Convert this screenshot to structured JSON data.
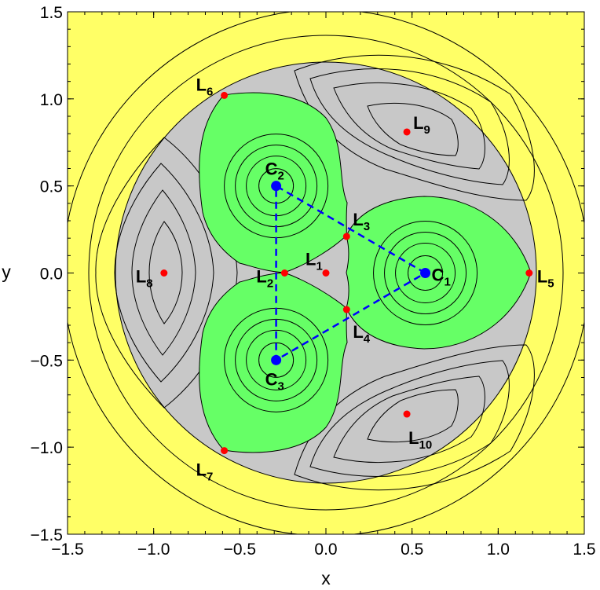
{
  "chart_data": {
    "type": "contour",
    "xlabel": "x",
    "ylabel": "y",
    "xlim": [
      -1.5,
      1.5
    ],
    "ylim": [
      -1.5,
      1.5
    ],
    "x_ticks": [
      -1.5,
      -1.0,
      -0.5,
      0.0,
      0.5,
      1.0,
      1.5
    ],
    "x_tick_labels": [
      "−1.5",
      "−1.0",
      "−0.5",
      "0.0",
      "0.5",
      "1.0",
      "1.5"
    ],
    "y_ticks": [
      1.5,
      1.0,
      0.5,
      0.0,
      -0.5,
      -1.0,
      -1.5
    ],
    "y_tick_labels": [
      "1.5",
      "1.0",
      "0.5",
      "0.0",
      "−0.5",
      "−1.0",
      "−1.5"
    ],
    "grid": false,
    "region_colors": {
      "outer": "#ffff66",
      "forbidden": "#c8c8c8",
      "allowed": "#66ff66"
    },
    "primaries": [
      {
        "name": "C",
        "sub": "1",
        "x": 0.577,
        "y": 0.0
      },
      {
        "name": "C",
        "sub": "2",
        "x": -0.289,
        "y": 0.5
      },
      {
        "name": "C",
        "sub": "3",
        "x": -0.289,
        "y": -0.5
      }
    ],
    "triangle_style": {
      "color": "#0000ff",
      "dash": "dashed"
    },
    "equilibria": [
      {
        "name": "L",
        "sub": "1",
        "x": 0.0,
        "y": 0.0
      },
      {
        "name": "L",
        "sub": "2",
        "x": -0.24,
        "y": 0.0
      },
      {
        "name": "L",
        "sub": "3",
        "x": 0.12,
        "y": 0.21
      },
      {
        "name": "L",
        "sub": "4",
        "x": 0.12,
        "y": -0.21
      },
      {
        "name": "L",
        "sub": "5",
        "x": 1.18,
        "y": 0.0
      },
      {
        "name": "L",
        "sub": "6",
        "x": -0.59,
        "y": 1.02
      },
      {
        "name": "L",
        "sub": "7",
        "x": -0.59,
        "y": -1.02
      },
      {
        "name": "L",
        "sub": "8",
        "x": -0.94,
        "y": 0.0
      },
      {
        "name": "L",
        "sub": "9",
        "x": 0.47,
        "y": 0.81
      },
      {
        "name": "L",
        "sub": "10",
        "x": 0.47,
        "y": -0.81
      }
    ],
    "point_colors": {
      "primaries": "#0000ff",
      "equilibria": "#ff0000"
    }
  }
}
